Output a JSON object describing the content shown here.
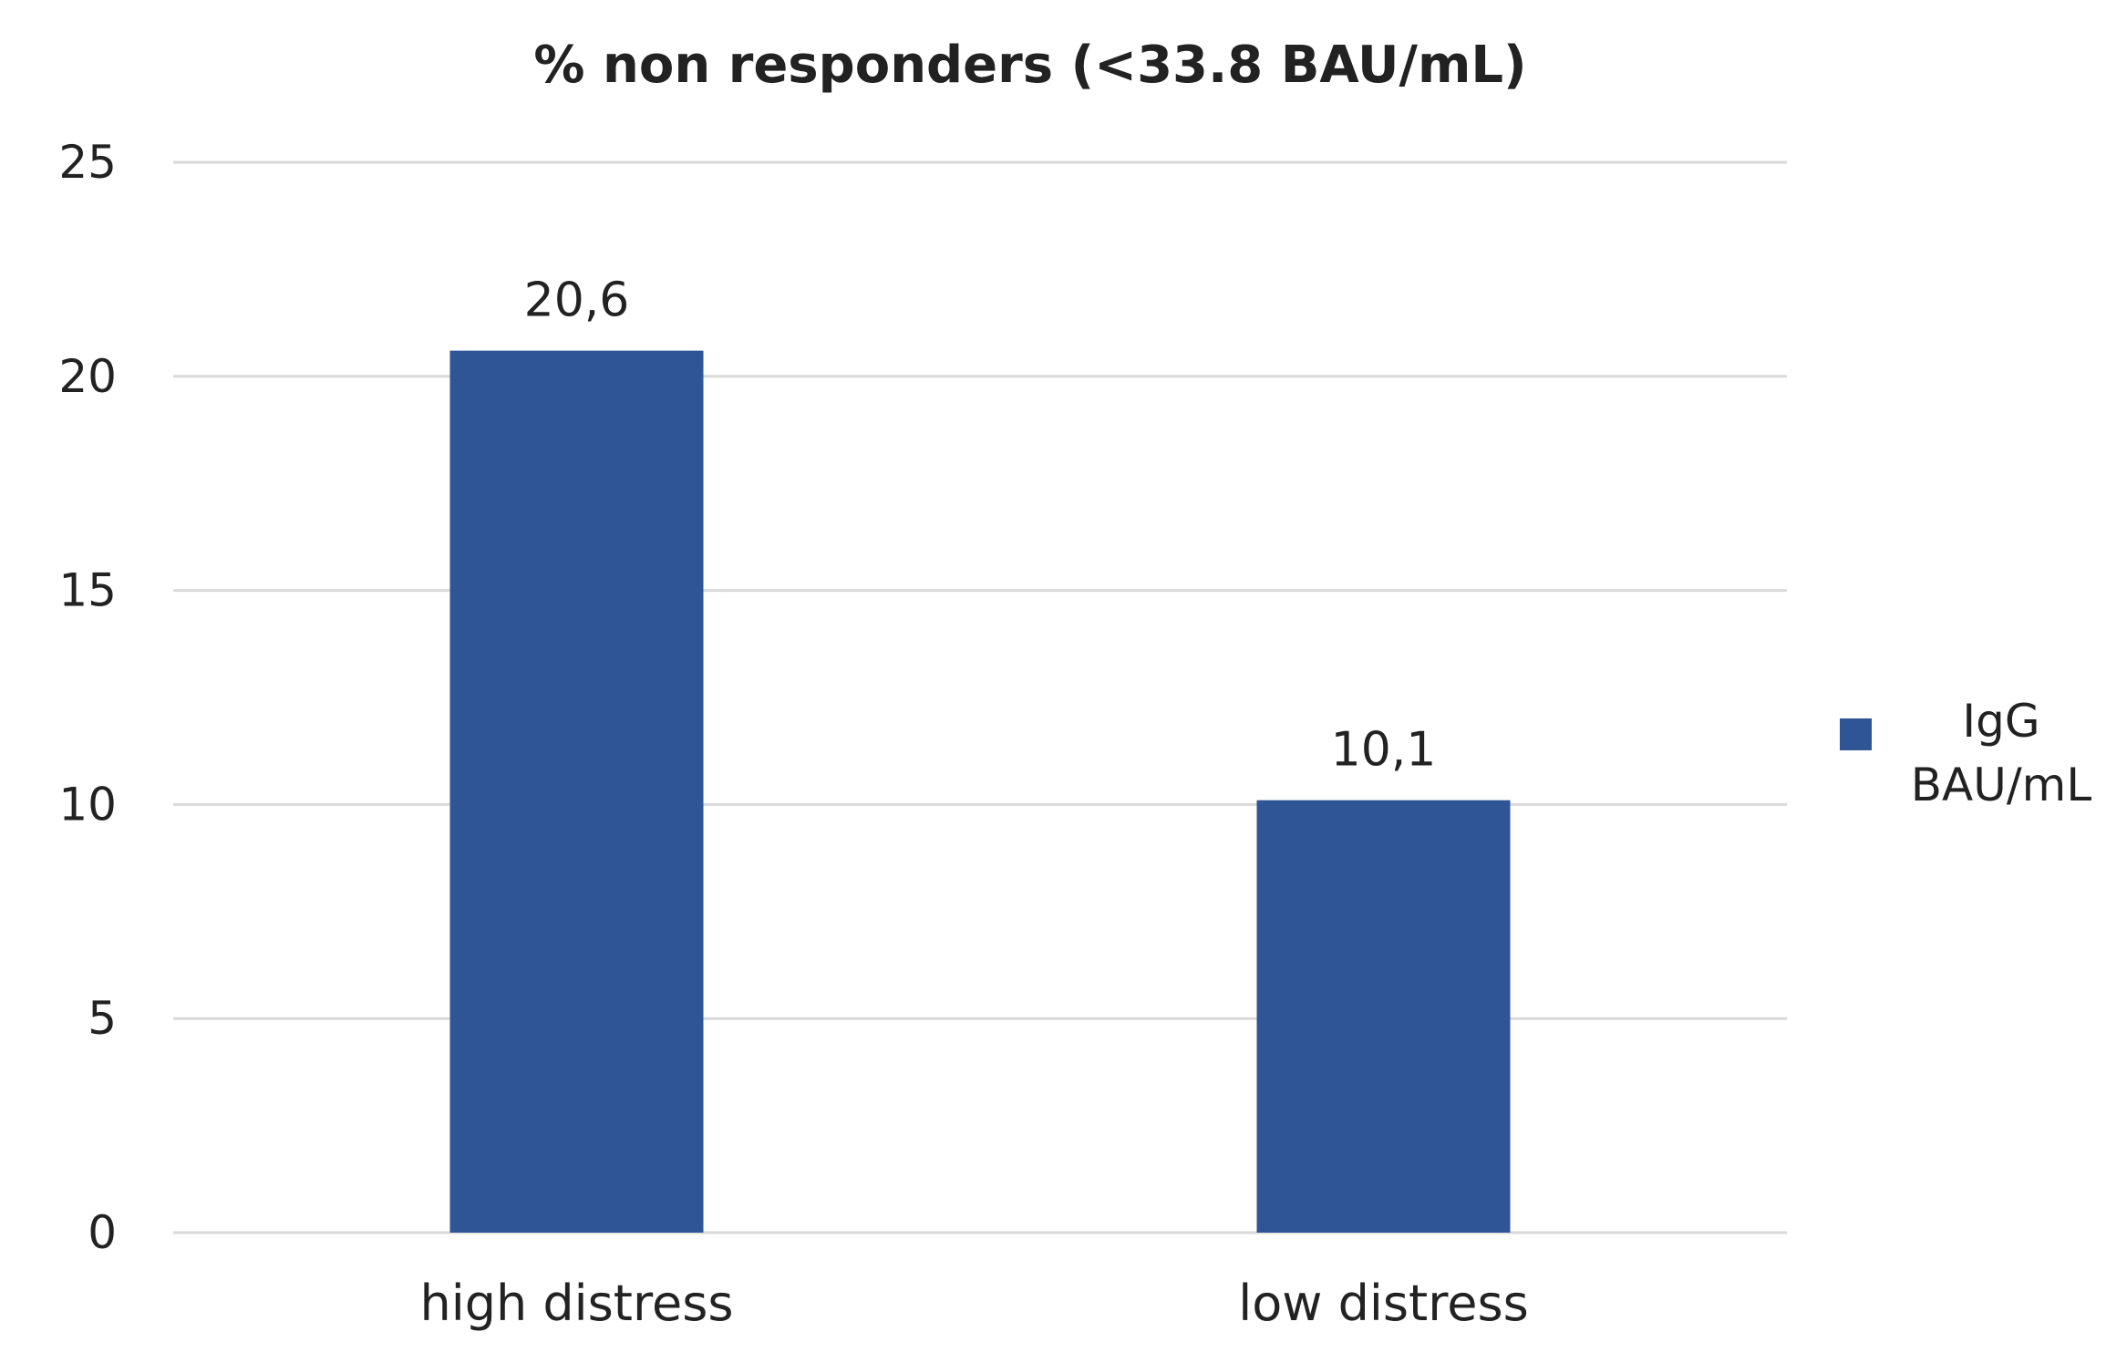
{
  "chart_data": {
    "type": "bar",
    "title": "% non responders (<33.8 BAU/mL)",
    "xlabel": "",
    "ylabel": "",
    "categories": [
      "high distress",
      "low distress"
    ],
    "series": [
      {
        "name": "IgG BAU/mL",
        "values": [
          20.6,
          10.1
        ],
        "labels": [
          "20,6",
          "10,1"
        ],
        "color": "#2F5596"
      }
    ],
    "ylim": [
      0,
      25
    ],
    "yticks": [
      "0",
      "5",
      "10",
      "15",
      "20",
      "25"
    ],
    "grid": true,
    "legend": {
      "position": "right",
      "lines": [
        "IgG",
        "BAU/mL"
      ]
    }
  }
}
